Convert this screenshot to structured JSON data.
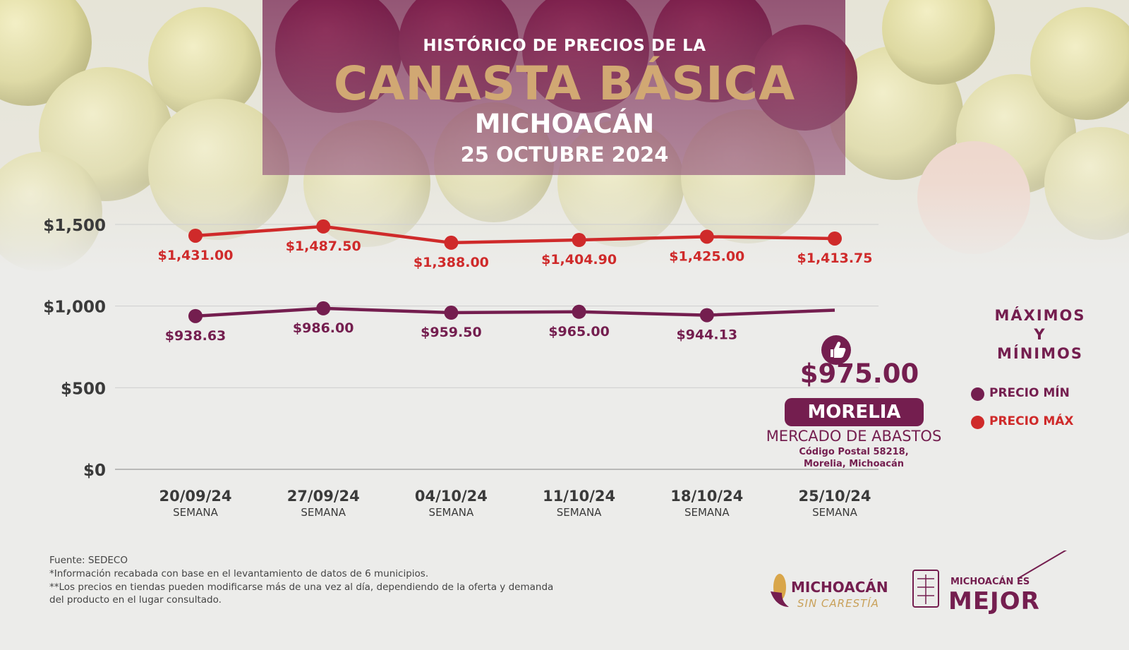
{
  "header": {
    "pre_title": "HISTÓRICO DE PRECIOS DE LA",
    "title": "CANASTA BÁSICA",
    "region": "MICHOACÁN",
    "date": "25 OCTUBRE 2024"
  },
  "colors": {
    "min_series": "#741e4f",
    "max_series": "#cf2a2a",
    "title_gold": "#d1a873"
  },
  "chart_data": {
    "type": "line",
    "x": [
      "20/09/24",
      "27/09/24",
      "04/10/24",
      "11/10/24",
      "18/10/24",
      "25/10/24"
    ],
    "x_sublabel": "SEMANA",
    "yticks": [
      "$0",
      "$500",
      "$1,000",
      "$1,500"
    ],
    "ylim": [
      0,
      1500
    ],
    "grid": true,
    "series": [
      {
        "name": "PRECIO MÁX",
        "values": [
          1431.0,
          1487.5,
          1388.0,
          1404.9,
          1425.0,
          1413.75
        ],
        "labels": [
          "$1,431.00",
          "$1,487.50",
          "$1,388.00",
          "$1,404.90",
          "$1,425.00",
          "$1,413.75"
        ]
      },
      {
        "name": "PRECIO MÍN",
        "values": [
          938.63,
          986.0,
          959.5,
          965.0,
          944.13,
          975.0
        ],
        "labels": [
          "$938.63",
          "$986.00",
          "$959.50",
          "$965.00",
          "$944.13",
          ""
        ]
      }
    ],
    "legend": {
      "title_lines": [
        "MÁXIMOS",
        "Y",
        "MÍNIMOS"
      ],
      "placement": "right",
      "items": [
        "PRECIO MÍN",
        "PRECIO MÁX"
      ]
    }
  },
  "highlight": {
    "value": "$975.00",
    "city": "MORELIA",
    "market": "MERCADO DE ABASTOS",
    "address_line1": "Código Postal 58218,",
    "address_line2": "Morelia, Michoacán",
    "icon": "thumbs-up-icon"
  },
  "footer": {
    "source": "Fuente: SEDECO",
    "note1": "*Información recabada con base en el levantamiento de datos de 6 municipios.",
    "note2": "**Los precios en tiendas pueden modificarse más de una vez al día, dependiendo de la oferta y demanda",
    "note3": "del producto en el lugar consultado."
  },
  "logos": {
    "left_line1": "MICHOACÁN",
    "left_line2": "SIN CARESTÍA",
    "right_line1": "MICHOACÁN ES",
    "right_line2": "MEJOR"
  }
}
